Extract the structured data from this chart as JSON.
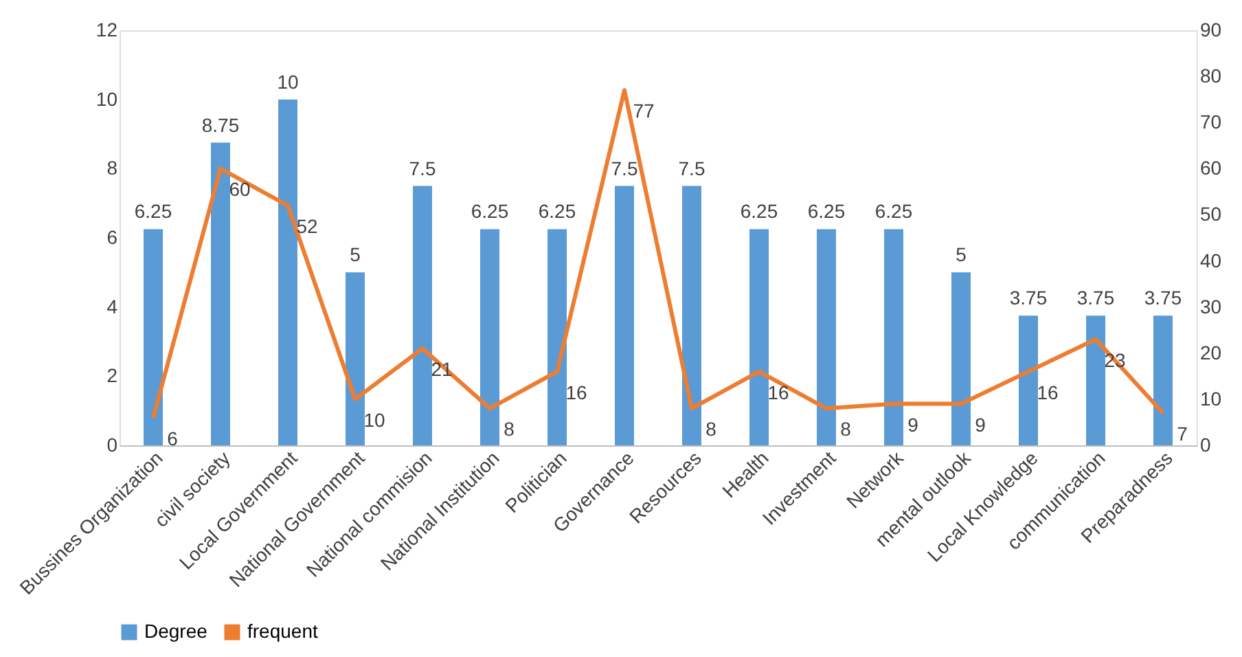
{
  "chart_data": {
    "type": "bar",
    "categories": [
      "Bussines Organization",
      "civil society",
      "Local Government",
      "National Government",
      "National commision",
      "National Institution",
      "Politician",
      "Governance",
      "Resources",
      "Health",
      "Investment",
      "Network",
      "mental outlook",
      "Local Knowledge",
      "communication",
      "Preparadness"
    ],
    "series": [
      {
        "name": "Degree",
        "color": "#5b9bd5",
        "values": [
          6.25,
          8.75,
          10,
          5,
          7.5,
          6.25,
          6.25,
          7.5,
          7.5,
          6.25,
          6.25,
          6.25,
          5,
          3.75,
          3.75,
          3.75
        ]
      },
      {
        "name": "frequent",
        "type": "line",
        "axis": "y2",
        "color": "#ed7d31",
        "values": [
          6,
          60,
          52,
          10,
          21,
          8,
          16,
          77,
          8,
          16,
          8,
          9,
          9,
          16,
          23,
          7
        ]
      }
    ],
    "ylim": [
      0,
      12
    ],
    "yticks": [
      0,
      2,
      4,
      6,
      8,
      10,
      12
    ],
    "y2lim": [
      0,
      90
    ],
    "y2ticks": [
      0,
      10,
      20,
      30,
      40,
      50,
      60,
      70,
      80,
      90
    ],
    "data_labels": true,
    "legend": "bottom",
    "grid": false,
    "marker": "none",
    "line_style": "solid"
  }
}
